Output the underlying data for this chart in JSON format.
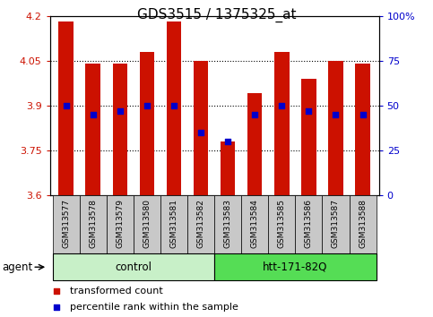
{
  "title": "GDS3515 / 1375325_at",
  "samples": [
    "GSM313577",
    "GSM313578",
    "GSM313579",
    "GSM313580",
    "GSM313581",
    "GSM313582",
    "GSM313583",
    "GSM313584",
    "GSM313585",
    "GSM313586",
    "GSM313587",
    "GSM313588"
  ],
  "bar_values": [
    4.18,
    4.04,
    4.04,
    4.08,
    4.18,
    4.05,
    3.78,
    3.94,
    4.08,
    3.99,
    4.05,
    4.04
  ],
  "dot_percentiles": [
    50,
    45,
    47,
    50,
    50,
    35,
    30,
    45,
    50,
    47,
    45,
    45
  ],
  "ylim_left": [
    3.6,
    4.2
  ],
  "ylim_right": [
    0,
    100
  ],
  "yticks_left": [
    3.6,
    3.75,
    3.9,
    4.05,
    4.2
  ],
  "yticks_left_labels": [
    "3.6",
    "3.75",
    "3.9",
    "4.05",
    "4.2"
  ],
  "yticks_right": [
    0,
    25,
    50,
    75,
    100
  ],
  "yticks_right_labels": [
    "0",
    "25",
    "50",
    "75",
    "100%"
  ],
  "grid_lines": [
    3.75,
    3.9,
    4.05
  ],
  "bar_color": "#cc1100",
  "dot_color": "#0000cc",
  "groups": [
    {
      "label": "control",
      "start": 0,
      "end": 5,
      "color": "#c8f0c8"
    },
    {
      "label": "htt-171-82Q",
      "start": 6,
      "end": 11,
      "color": "#55dd55"
    }
  ],
  "agent_label": "agent",
  "legend_bar_label": "transformed count",
  "legend_dot_label": "percentile rank within the sample",
  "title_fontsize": 11,
  "tick_fontsize": 8,
  "sample_fontsize": 6.5,
  "group_fontsize": 8.5,
  "legend_fontsize": 8,
  "xtick_bg": "#c8c8c8",
  "plot_bg": "#ffffff"
}
